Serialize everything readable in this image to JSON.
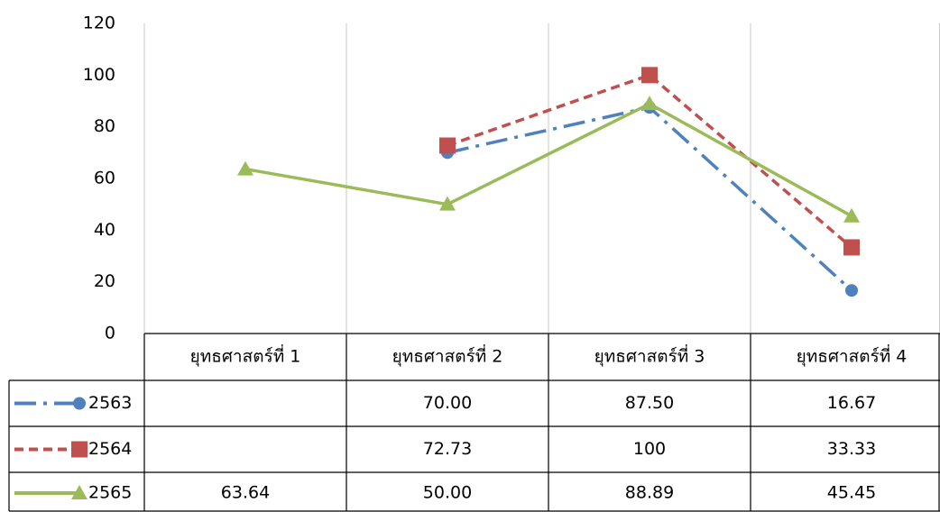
{
  "chart_data": {
    "type": "line",
    "categories": [
      "ยุทธศาสตร์ที่ 1",
      "ยุทธศาสตร์ที่ 2",
      "ยุทธศาสตร์ที่ 3",
      "ยุทธศาสตร์ที่ 4"
    ],
    "series": [
      {
        "name": "2563",
        "color": "#4f81bd",
        "dash": "dash-dot",
        "marker": "circle",
        "values": [
          null,
          70,
          87.5,
          16.67
        ],
        "value_labels": [
          null,
          "70.00",
          "87.50",
          "16.67"
        ]
      },
      {
        "name": "2564",
        "color": "#c0504d",
        "dash": "dashed",
        "marker": "square",
        "values": [
          null,
          72.73,
          100,
          33.33
        ],
        "value_labels": [
          null,
          "72.73",
          "100",
          "33.33"
        ]
      },
      {
        "name": "2565",
        "color": "#9bbb59",
        "dash": "solid",
        "marker": "triangle",
        "values": [
          63.64,
          50,
          88.89,
          45.45
        ],
        "value_labels": [
          "63.64",
          "50.00",
          "88.89",
          "45.45"
        ]
      }
    ],
    "ylim": [
      0,
      120
    ],
    "yticks": [
      0,
      20,
      40,
      60,
      80,
      100,
      120
    ],
    "grid": false
  }
}
